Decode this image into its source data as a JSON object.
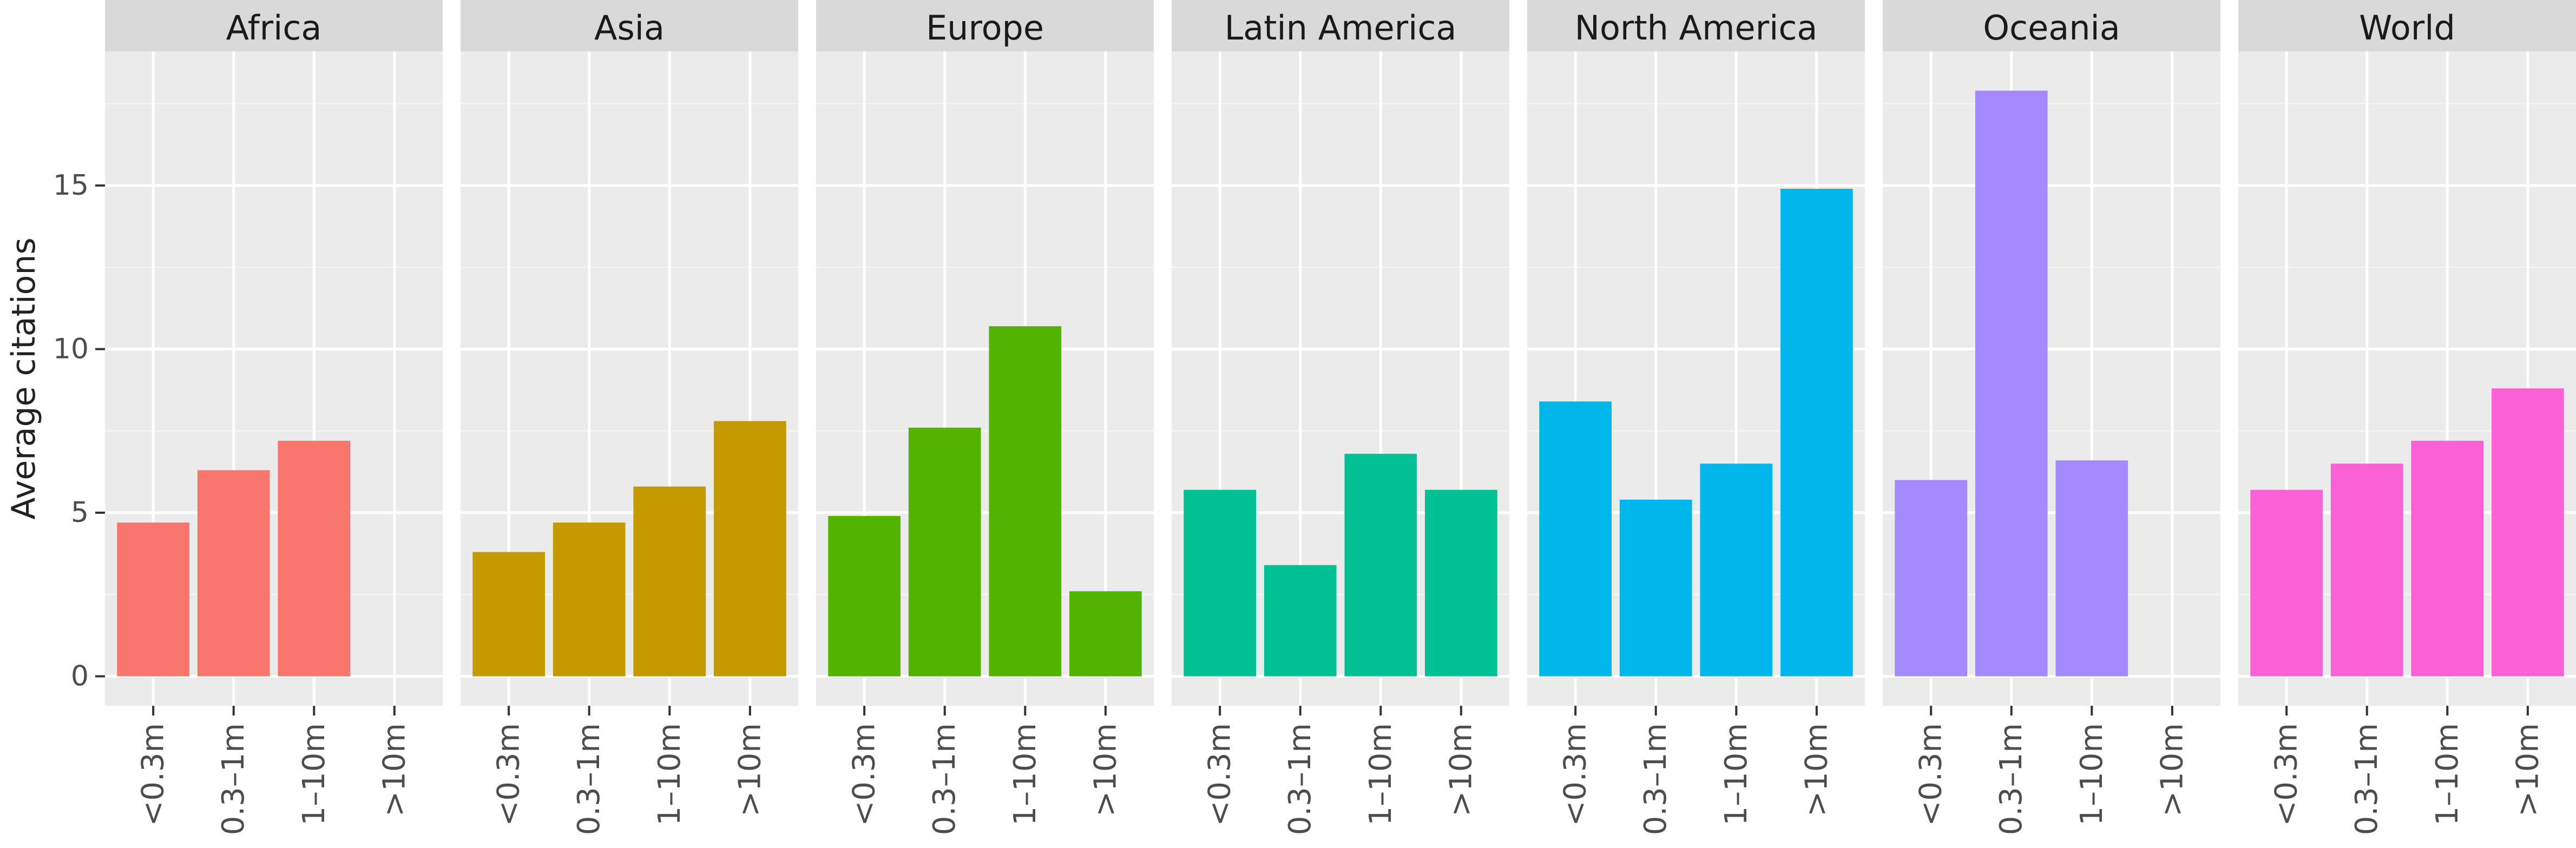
{
  "chart_data": {
    "type": "bar",
    "ylabel": "Average citations",
    "xlabel": "",
    "ylim": [
      -0.9,
      19.1
    ],
    "yticks": [
      0,
      5,
      10,
      15
    ],
    "categories": [
      "<0.3m",
      "0.3–1m",
      "1–10m",
      ">10m"
    ],
    "grid": true,
    "legend": "none",
    "panels": [
      {
        "name": "Africa",
        "color": "#F8766D",
        "values": [
          4.7,
          6.3,
          7.2,
          null
        ]
      },
      {
        "name": "Asia",
        "color": "#C49A00",
        "values": [
          3.8,
          4.7,
          5.8,
          7.8
        ]
      },
      {
        "name": "Europe",
        "color": "#53B400",
        "values": [
          4.9,
          7.6,
          10.7,
          2.6
        ]
      },
      {
        "name": "Latin America",
        "color": "#00C094",
        "values": [
          5.7,
          3.4,
          6.8,
          5.7
        ]
      },
      {
        "name": "North America",
        "color": "#00B6EB",
        "values": [
          8.4,
          5.4,
          6.5,
          14.9
        ]
      },
      {
        "name": "Oceania",
        "color": "#A58AFF",
        "values": [
          6.0,
          17.9,
          6.6,
          null
        ]
      },
      {
        "name": "World",
        "color": "#FB61D7",
        "values": [
          5.7,
          6.5,
          7.2,
          8.8
        ]
      }
    ]
  }
}
